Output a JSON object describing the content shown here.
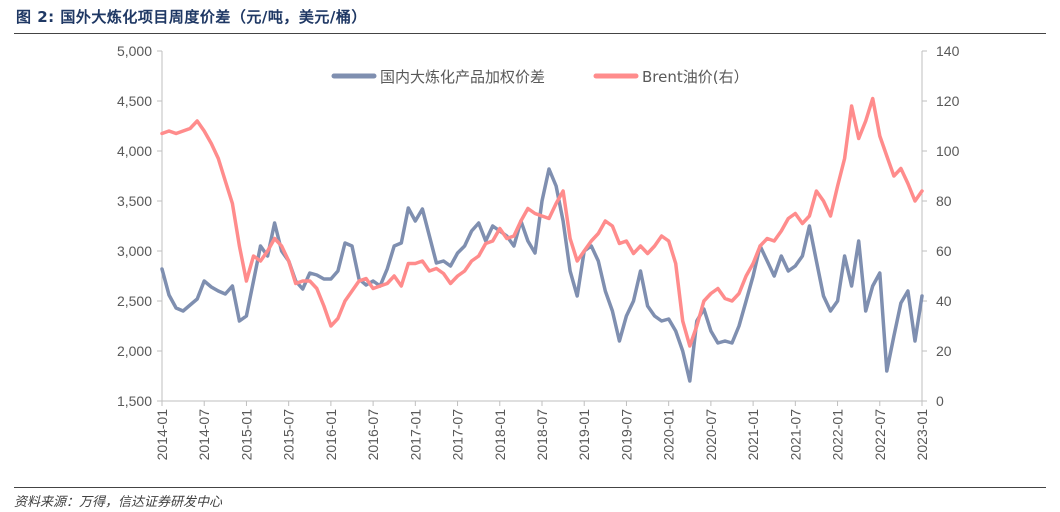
{
  "header": {
    "title": "图 2:  国外大炼化项目周度价差（元/吨，美元/桶）"
  },
  "footer": {
    "source": "资料来源：万得，信达证券研发中心"
  },
  "colors": {
    "spread_line": "#7f8fb0",
    "brent_line": "#ff8c8c",
    "axis": "#bfbfbf",
    "title": "#1f3864"
  },
  "chart_data": {
    "type": "line",
    "title": "",
    "xlabel": "",
    "ylabel": "",
    "x_tick_labels": [
      "2014-01",
      "2014-07",
      "2015-01",
      "2015-07",
      "2016-01",
      "2016-07",
      "2017-01",
      "2017-07",
      "2018-01",
      "2018-07",
      "2019-01",
      "2019-07",
      "2020-01",
      "2020-07",
      "2021-01",
      "2021-07",
      "2022-01",
      "2022-07",
      "2023-01"
    ],
    "y_left": {
      "min": 1500,
      "max": 5000,
      "ticks": [
        "1,500",
        "2,000",
        "2,500",
        "3,000",
        "3,500",
        "4,000",
        "4,500",
        "5,000"
      ]
    },
    "y_right": {
      "min": 0,
      "max": 140,
      "ticks": [
        "0",
        "20",
        "40",
        "60",
        "80",
        "100",
        "120",
        "140"
      ]
    },
    "legend_position": "top",
    "series": [
      {
        "name": "国内大炼化产品加权价差",
        "axis": "left",
        "points": [
          [
            "2014-01",
            2820
          ],
          [
            "2014-02",
            2560
          ],
          [
            "2014-03",
            2430
          ],
          [
            "2014-04",
            2400
          ],
          [
            "2014-05",
            2460
          ],
          [
            "2014-06",
            2520
          ],
          [
            "2014-07",
            2700
          ],
          [
            "2014-08",
            2640
          ],
          [
            "2014-09",
            2600
          ],
          [
            "2014-10",
            2570
          ],
          [
            "2014-11",
            2650
          ],
          [
            "2014-12",
            2300
          ],
          [
            "2015-01",
            2350
          ],
          [
            "2015-02",
            2700
          ],
          [
            "2015-03",
            3050
          ],
          [
            "2015-04",
            2950
          ],
          [
            "2015-05",
            3280
          ],
          [
            "2015-06",
            3000
          ],
          [
            "2015-07",
            2900
          ],
          [
            "2015-08",
            2700
          ],
          [
            "2015-09",
            2620
          ],
          [
            "2015-10",
            2780
          ],
          [
            "2015-11",
            2760
          ],
          [
            "2015-12",
            2720
          ],
          [
            "2016-01",
            2720
          ],
          [
            "2016-02",
            2800
          ],
          [
            "2016-03",
            3080
          ],
          [
            "2016-04",
            3050
          ],
          [
            "2016-05",
            2720
          ],
          [
            "2016-06",
            2660
          ],
          [
            "2016-07",
            2700
          ],
          [
            "2016-08",
            2650
          ],
          [
            "2016-09",
            2820
          ],
          [
            "2016-10",
            3050
          ],
          [
            "2016-11",
            3080
          ],
          [
            "2016-12",
            3430
          ],
          [
            "2017-01",
            3300
          ],
          [
            "2017-02",
            3420
          ],
          [
            "2017-03",
            3150
          ],
          [
            "2017-04",
            2880
          ],
          [
            "2017-05",
            2900
          ],
          [
            "2017-06",
            2850
          ],
          [
            "2017-07",
            2980
          ],
          [
            "2017-08",
            3050
          ],
          [
            "2017-09",
            3200
          ],
          [
            "2017-10",
            3280
          ],
          [
            "2017-11",
            3100
          ],
          [
            "2017-12",
            3250
          ],
          [
            "2018-01",
            3200
          ],
          [
            "2018-02",
            3150
          ],
          [
            "2018-03",
            3050
          ],
          [
            "2018-04",
            3300
          ],
          [
            "2018-05",
            3100
          ],
          [
            "2018-06",
            2980
          ],
          [
            "2018-07",
            3500
          ],
          [
            "2018-08",
            3820
          ],
          [
            "2018-09",
            3650
          ],
          [
            "2018-10",
            3300
          ],
          [
            "2018-11",
            2800
          ],
          [
            "2018-12",
            2550
          ],
          [
            "2019-01",
            3000
          ],
          [
            "2019-02",
            3050
          ],
          [
            "2019-03",
            2900
          ],
          [
            "2019-04",
            2600
          ],
          [
            "2019-05",
            2400
          ],
          [
            "2019-06",
            2100
          ],
          [
            "2019-07",
            2350
          ],
          [
            "2019-08",
            2500
          ],
          [
            "2019-09",
            2800
          ],
          [
            "2019-10",
            2450
          ],
          [
            "2019-11",
            2350
          ],
          [
            "2019-12",
            2300
          ],
          [
            "2020-01",
            2320
          ],
          [
            "2020-02",
            2200
          ],
          [
            "2020-03",
            2000
          ],
          [
            "2020-04",
            1700
          ],
          [
            "2020-05",
            2300
          ],
          [
            "2020-06",
            2420
          ],
          [
            "2020-07",
            2200
          ],
          [
            "2020-08",
            2080
          ],
          [
            "2020-09",
            2100
          ],
          [
            "2020-10",
            2080
          ],
          [
            "2020-11",
            2250
          ],
          [
            "2020-12",
            2500
          ],
          [
            "2021-01",
            2750
          ],
          [
            "2021-02",
            3050
          ],
          [
            "2021-03",
            2900
          ],
          [
            "2021-04",
            2750
          ],
          [
            "2021-05",
            2950
          ],
          [
            "2021-06",
            2800
          ],
          [
            "2021-07",
            2850
          ],
          [
            "2021-08",
            2950
          ],
          [
            "2021-09",
            3250
          ],
          [
            "2021-10",
            2900
          ],
          [
            "2021-11",
            2550
          ],
          [
            "2021-12",
            2400
          ],
          [
            "2022-01",
            2500
          ],
          [
            "2022-02",
            2950
          ],
          [
            "2022-03",
            2650
          ],
          [
            "2022-04",
            3100
          ],
          [
            "2022-05",
            2400
          ],
          [
            "2022-06",
            2650
          ],
          [
            "2022-07",
            2780
          ],
          [
            "2022-08",
            1800
          ],
          [
            "2022-09",
            2150
          ],
          [
            "2022-10",
            2480
          ],
          [
            "2022-11",
            2600
          ],
          [
            "2022-12",
            2100
          ],
          [
            "2023-01",
            2550
          ]
        ]
      },
      {
        "name": "Brent油价(右）",
        "axis": "right",
        "points": [
          [
            "2014-01",
            107
          ],
          [
            "2014-02",
            108
          ],
          [
            "2014-03",
            107
          ],
          [
            "2014-04",
            108
          ],
          [
            "2014-05",
            109
          ],
          [
            "2014-06",
            112
          ],
          [
            "2014-07",
            108
          ],
          [
            "2014-08",
            103
          ],
          [
            "2014-09",
            97
          ],
          [
            "2014-10",
            88
          ],
          [
            "2014-11",
            79
          ],
          [
            "2014-12",
            62
          ],
          [
            "2015-01",
            48
          ],
          [
            "2015-02",
            58
          ],
          [
            "2015-03",
            56
          ],
          [
            "2015-04",
            60
          ],
          [
            "2015-05",
            65
          ],
          [
            "2015-06",
            62
          ],
          [
            "2015-07",
            56
          ],
          [
            "2015-08",
            47
          ],
          [
            "2015-09",
            48
          ],
          [
            "2015-10",
            48
          ],
          [
            "2015-11",
            45
          ],
          [
            "2015-12",
            38
          ],
          [
            "2016-01",
            30
          ],
          [
            "2016-02",
            33
          ],
          [
            "2016-03",
            40
          ],
          [
            "2016-04",
            44
          ],
          [
            "2016-05",
            48
          ],
          [
            "2016-06",
            49
          ],
          [
            "2016-07",
            45
          ],
          [
            "2016-08",
            46
          ],
          [
            "2016-09",
            47
          ],
          [
            "2016-10",
            50
          ],
          [
            "2016-11",
            46
          ],
          [
            "2016-12",
            55
          ],
          [
            "2017-01",
            55
          ],
          [
            "2017-02",
            56
          ],
          [
            "2017-03",
            52
          ],
          [
            "2017-04",
            53
          ],
          [
            "2017-05",
            51
          ],
          [
            "2017-06",
            47
          ],
          [
            "2017-07",
            50
          ],
          [
            "2017-08",
            52
          ],
          [
            "2017-09",
            56
          ],
          [
            "2017-10",
            58
          ],
          [
            "2017-11",
            63
          ],
          [
            "2017-12",
            64
          ],
          [
            "2018-01",
            69
          ],
          [
            "2018-02",
            65
          ],
          [
            "2018-03",
            66
          ],
          [
            "2018-04",
            72
          ],
          [
            "2018-05",
            77
          ],
          [
            "2018-06",
            75
          ],
          [
            "2018-07",
            74
          ],
          [
            "2018-08",
            73
          ],
          [
            "2018-09",
            79
          ],
          [
            "2018-10",
            84
          ],
          [
            "2018-11",
            65
          ],
          [
            "2018-12",
            56
          ],
          [
            "2019-01",
            60
          ],
          [
            "2019-02",
            64
          ],
          [
            "2019-03",
            67
          ],
          [
            "2019-04",
            72
          ],
          [
            "2019-05",
            70
          ],
          [
            "2019-06",
            63
          ],
          [
            "2019-07",
            64
          ],
          [
            "2019-08",
            59
          ],
          [
            "2019-09",
            62
          ],
          [
            "2019-10",
            59
          ],
          [
            "2019-11",
            62
          ],
          [
            "2019-12",
            66
          ],
          [
            "2020-01",
            64
          ],
          [
            "2020-02",
            55
          ],
          [
            "2020-03",
            32
          ],
          [
            "2020-04",
            22
          ],
          [
            "2020-05",
            30
          ],
          [
            "2020-06",
            40
          ],
          [
            "2020-07",
            43
          ],
          [
            "2020-08",
            45
          ],
          [
            "2020-09",
            41
          ],
          [
            "2020-10",
            40
          ],
          [
            "2020-11",
            43
          ],
          [
            "2020-12",
            50
          ],
          [
            "2021-01",
            55
          ],
          [
            "2021-02",
            62
          ],
          [
            "2021-03",
            65
          ],
          [
            "2021-04",
            64
          ],
          [
            "2021-05",
            68
          ],
          [
            "2021-06",
            73
          ],
          [
            "2021-07",
            75
          ],
          [
            "2021-08",
            71
          ],
          [
            "2021-09",
            74
          ],
          [
            "2021-10",
            84
          ],
          [
            "2021-11",
            80
          ],
          [
            "2021-12",
            74
          ],
          [
            "2022-01",
            86
          ],
          [
            "2022-02",
            97
          ],
          [
            "2022-03",
            118
          ],
          [
            "2022-04",
            105
          ],
          [
            "2022-05",
            112
          ],
          [
            "2022-06",
            121
          ],
          [
            "2022-07",
            106
          ],
          [
            "2022-08",
            98
          ],
          [
            "2022-09",
            90
          ],
          [
            "2022-10",
            93
          ],
          [
            "2022-11",
            87
          ],
          [
            "2022-12",
            80
          ],
          [
            "2023-01",
            84
          ]
        ]
      }
    ]
  }
}
